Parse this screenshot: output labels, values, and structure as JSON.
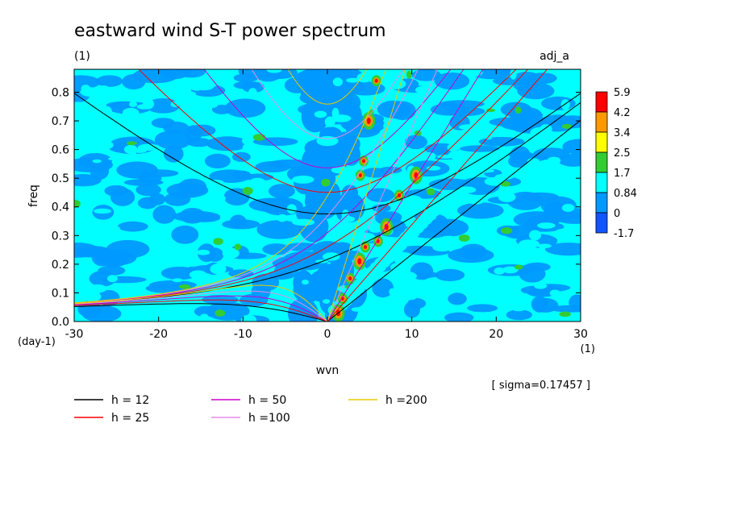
{
  "chart_data": {
    "type": "heatmap",
    "title": "eastward wind S-T power spectrum",
    "subtitle": "(1)",
    "tag": "adj_a",
    "xlabel": "wvn",
    "ylabel": "freq",
    "x_unit": "(1)",
    "y_unit": "(day-1)",
    "note": "[ sigma=0.17457 ]",
    "xlim": [
      -30,
      30
    ],
    "ylim": [
      0,
      0.88
    ],
    "x_ticks": [
      -30,
      -20,
      -10,
      0,
      10,
      20,
      30
    ],
    "y_ticks": [
      0.0,
      0.1,
      0.2,
      0.3,
      0.4,
      0.5,
      0.6,
      0.7,
      0.8
    ],
    "colorbar": {
      "levels": [
        "5.9",
        "4.2",
        "3.4",
        "2.5",
        "1.7",
        "0.84",
        "0",
        "-1.7"
      ],
      "colors": [
        "#ff0000",
        "#ff9900",
        "#ffff00",
        "#33cc33",
        "#00ffff",
        "#0099ff",
        "#1155ff"
      ]
    },
    "series": [
      {
        "name": "h = 12",
        "h": 12,
        "color": "#000000"
      },
      {
        "name": "h = 25",
        "h": 25,
        "color": "#ff0000"
      },
      {
        "name": "h = 50",
        "h": 50,
        "color": "#cc00cc"
      },
      {
        "name": "h =100",
        "h": 100,
        "color": "#e58ce5"
      },
      {
        "name": "h =200",
        "h": 200,
        "color": "#e6cc00"
      }
    ]
  }
}
